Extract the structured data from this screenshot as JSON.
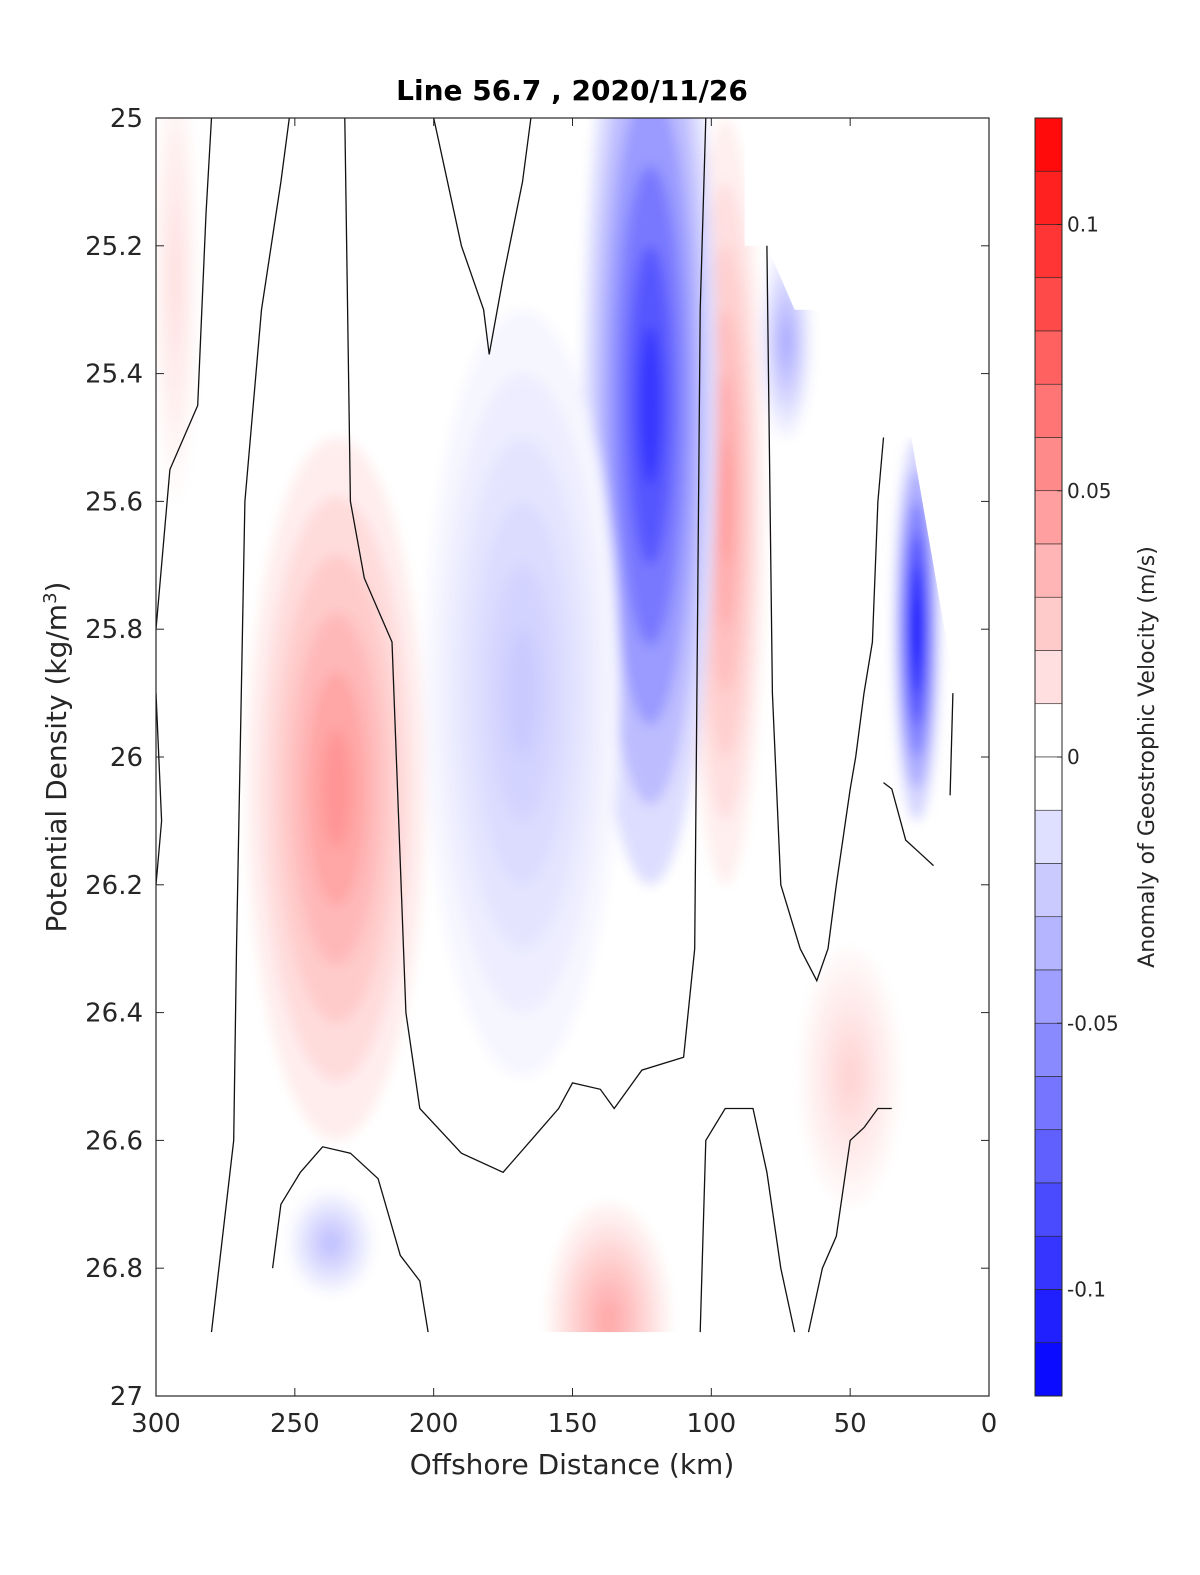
{
  "chart_data": {
    "type": "heatmap",
    "title": "Line 56.7 , 2020/11/26",
    "xlabel": "Offshore Distance (km)",
    "ylabel_main": "Potential Density (kg/m",
    "ylabel_sup": "3",
    "ylabel_close": ")",
    "colorbar_label": "Anomaly of Geostrophic Velocity (m/s)",
    "xlim": [
      300,
      0
    ],
    "ylim": [
      25,
      27
    ],
    "x_reversed": true,
    "y_reversed": true,
    "x_ticks": [
      300,
      250,
      200,
      150,
      100,
      50,
      0
    ],
    "x_tick_labels": [
      "300",
      "250",
      "200",
      "150",
      "100",
      "50",
      "0"
    ],
    "y_ticks": [
      25,
      25.2,
      25.4,
      25.6,
      25.8,
      26,
      26.2,
      26.4,
      26.6,
      26.8,
      27
    ],
    "y_tick_labels": [
      "25",
      "25.2",
      "25.4",
      "25.6",
      "25.8",
      "26",
      "26.2",
      "26.4",
      "26.6",
      "26.8",
      "27"
    ],
    "colorbar_range": [
      -0.12,
      0.12
    ],
    "colorbar_levels": 24,
    "colorbar_ticks": [
      0.1,
      0.05,
      0,
      -0.05,
      -0.1
    ],
    "colorbar_tick_labels": [
      "0.1",
      "0.05",
      "0",
      "-0.05",
      "-0.1"
    ],
    "colormap": {
      "negative": "#0000ff",
      "zero": "#ffffff",
      "positive": "#ff0000"
    },
    "features": [
      {
        "name": "nearshore-red-core",
        "sign": "positive",
        "peak": 0.045,
        "center_x": 95,
        "center_y": 25.6,
        "rx": 14,
        "ry": 0.6
      },
      {
        "name": "main-red-core",
        "sign": "positive",
        "peak": 0.05,
        "center_x": 235,
        "center_y": 26.05,
        "rx": 32,
        "ry": 0.55
      },
      {
        "name": "upper-red-band",
        "sign": "positive",
        "peak": 0.015,
        "center_x": 293,
        "center_y": 25.25,
        "rx": 8,
        "ry": 0.35
      },
      {
        "name": "main-blue-core",
        "sign": "negative",
        "peak": -0.095,
        "center_x": 122,
        "center_y": 25.45,
        "rx": 24,
        "ry": 0.75
      },
      {
        "name": "offshore-blue-lobe",
        "sign": "negative",
        "peak": -0.025,
        "center_x": 168,
        "center_y": 25.9,
        "rx": 35,
        "ry": 0.6
      },
      {
        "name": "coastal-blue-jet",
        "sign": "negative",
        "peak": -0.12,
        "center_x": 26,
        "center_y": 25.8,
        "rx": 8,
        "ry": 0.3
      },
      {
        "name": "shelf-blue",
        "sign": "negative",
        "peak": -0.04,
        "center_x": 73,
        "center_y": 25.35,
        "rx": 9,
        "ry": 0.15
      },
      {
        "name": "deep-red-patch",
        "sign": "positive",
        "peak": 0.04,
        "center_x": 137,
        "center_y": 26.88,
        "rx": 22,
        "ry": 0.18
      },
      {
        "name": "deep-blue-patch",
        "sign": "negative",
        "peak": -0.03,
        "center_x": 237,
        "center_y": 26.76,
        "rx": 15,
        "ry": 0.08
      },
      {
        "name": "deep-red-diagonal",
        "sign": "positive",
        "peak": 0.02,
        "center_x": 50,
        "center_y": 26.5,
        "rx": 18,
        "ry": 0.2
      }
    ]
  }
}
